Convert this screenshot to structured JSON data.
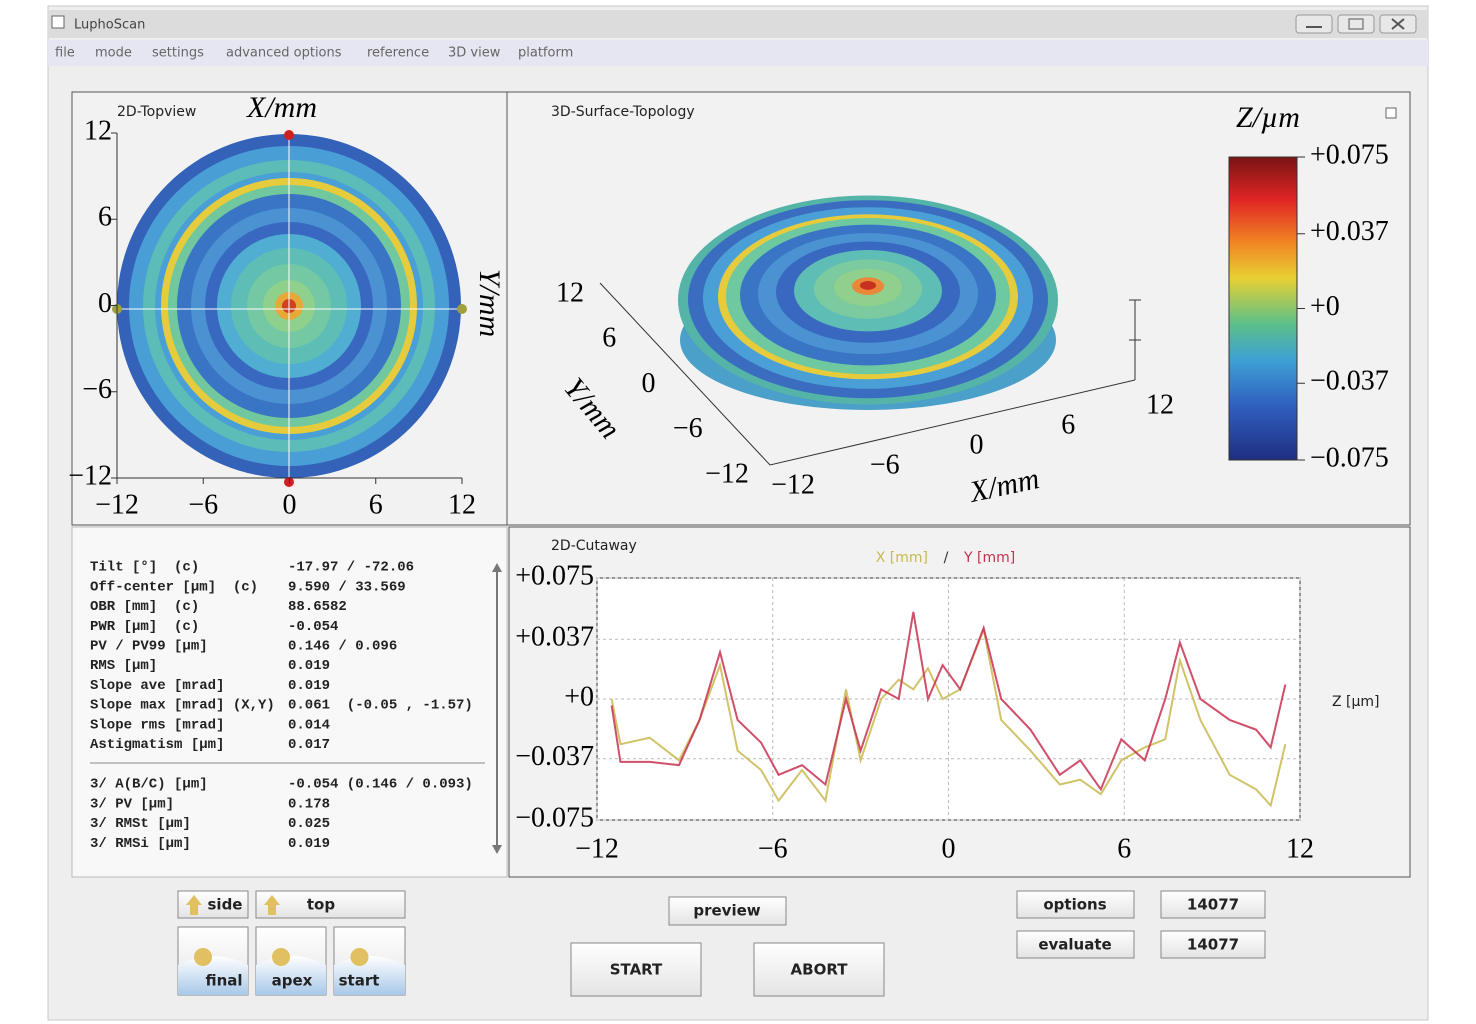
{
  "window": {
    "title": "LuphoScan"
  },
  "menu": [
    "file",
    "mode",
    "settings",
    "advanced options",
    "reference",
    "3D view",
    "platform"
  ],
  "topview": {
    "title": "2D-Topview",
    "x_label": "X/mm",
    "y_label": "Y/mm",
    "xlim": [
      -12,
      12
    ],
    "ylim": [
      -12,
      12
    ],
    "xticks": [
      {
        "value": -12,
        "label": "−12"
      },
      {
        "value": -6,
        "label": "−6"
      },
      0,
      6,
      12
    ],
    "yticks": [
      12,
      6,
      0,
      {
        "value": -6,
        "label": "−6"
      },
      {
        "value": -12,
        "label": "−12"
      }
    ]
  },
  "surface3d": {
    "title": "3D-Surface-Topology",
    "x_label": "X/mm",
    "y_label": "Y/mm",
    "xlim": [
      -12,
      12
    ],
    "ylim": [
      -12,
      12
    ],
    "xticks": [
      {
        "value": -12,
        "label": "−12"
      },
      {
        "value": -6,
        "label": "−6"
      },
      0,
      6,
      12
    ],
    "yticks": [
      12,
      6,
      0,
      {
        "value": -6,
        "label": "−6"
      },
      {
        "value": -12,
        "label": "−12"
      }
    ]
  },
  "colorbar": {
    "title": "Z/µm",
    "lim": [
      -0.075,
      0.075
    ],
    "ticks": [
      {
        "value": 0.075,
        "label": "+0.075"
      },
      {
        "value": 0.037,
        "label": "+0.037"
      },
      {
        "value": 0,
        "label": "+0"
      },
      {
        "value": -0.037,
        "label": "−0.037"
      },
      {
        "value": -0.075,
        "label": "−0.075"
      }
    ]
  },
  "stats": {
    "rows": [
      [
        "Tilt [°]  (c)",
        "-17.97 / -72.06"
      ],
      [
        "Off-center [µm]  (c)",
        "9.590 / 33.569"
      ],
      [
        "OBR [mm]  (c)",
        "88.6582"
      ],
      [
        "PWR [µm]  (c)",
        "-0.054"
      ],
      [
        "PV / PV99 [µm]",
        "0.146 / 0.096"
      ],
      [
        "RMS [µm]",
        "0.019"
      ],
      [
        "Slope ave [mrad]",
        "0.019"
      ],
      [
        "Slope max [mrad] (X,Y)",
        "0.061  (-0.05 , -1.57)"
      ],
      [
        "Slope rms [mrad]",
        "0.014"
      ],
      [
        "Astigmatism [µm]",
        "0.017"
      ]
    ],
    "rows2": [
      [
        "3/ A(B/C) [µm]",
        "-0.054 (0.146 / 0.093)"
      ],
      [
        "3/ PV [µm]",
        "0.178"
      ],
      [
        "3/ RMSt [µm]",
        "0.025"
      ],
      [
        "3/ RMSi [µm]",
        "0.019"
      ]
    ]
  },
  "chart_data": {
    "type": "line",
    "title": "2D-Cutaway",
    "legend_separator": "/",
    "y_label": "Z [µm]",
    "grid": true,
    "xlim": [
      -12,
      12
    ],
    "ylim": [
      -0.075,
      0.075
    ],
    "xticks": [
      {
        "value": -12,
        "label": "−12"
      },
      {
        "value": -6,
        "label": "−6"
      },
      0,
      6,
      12
    ],
    "yticks": [
      {
        "value": 0.075,
        "label": "+0.075"
      },
      {
        "value": 0.037,
        "label": "+0.037"
      },
      {
        "value": 0,
        "label": "+0"
      },
      {
        "value": -0.037,
        "label": "−0.037"
      },
      {
        "value": -0.075,
        "label": "−0.075"
      }
    ],
    "x": [
      -11.5,
      -11.2,
      -10.2,
      -9.2,
      -8.5,
      -7.8,
      -7.2,
      -6.4,
      -5.8,
      -5.0,
      -4.2,
      -3.5,
      -3.0,
      -2.3,
      -1.7,
      -1.2,
      -0.7,
      -0.2,
      0.4,
      1.2,
      1.8,
      2.8,
      3.8,
      4.5,
      5.2,
      5.9,
      6.7,
      7.4,
      7.9,
      8.6,
      9.6,
      10.5,
      11.0,
      11.5
    ],
    "series": [
      {
        "name": "X [mm]",
        "color": "#c8b850",
        "values": [
          0,
          -0.028,
          -0.024,
          -0.038,
          -0.013,
          0.021,
          -0.032,
          -0.044,
          -0.063,
          -0.044,
          -0.063,
          0.006,
          -0.038,
          0,
          0.012,
          0.006,
          0.019,
          0,
          0.006,
          0.043,
          -0.013,
          -0.032,
          -0.053,
          -0.05,
          -0.059,
          -0.038,
          -0.03,
          -0.025,
          0.024,
          -0.013,
          -0.047,
          -0.056,
          -0.066,
          -0.028
        ]
      },
      {
        "name": "Y [mm]",
        "color": "#c83050",
        "values": [
          -0.004,
          -0.039,
          -0.039,
          -0.041,
          -0.013,
          0.029,
          -0.013,
          -0.027,
          -0.047,
          -0.041,
          -0.053,
          0,
          -0.032,
          0.006,
          0,
          0.054,
          0,
          0.021,
          0.006,
          0.044,
          0,
          -0.019,
          -0.047,
          -0.038,
          -0.056,
          -0.025,
          -0.038,
          0,
          0.035,
          0,
          -0.013,
          -0.019,
          -0.03,
          0.009
        ]
      }
    ]
  },
  "buttons": {
    "side": "side",
    "top": "top",
    "final": "final",
    "apex": "apex",
    "start": "start",
    "preview": "preview",
    "run": "START",
    "abort": "ABORT",
    "options": "options",
    "evaluate": "evaluate",
    "counter1": "14077",
    "counter2": "14077"
  }
}
